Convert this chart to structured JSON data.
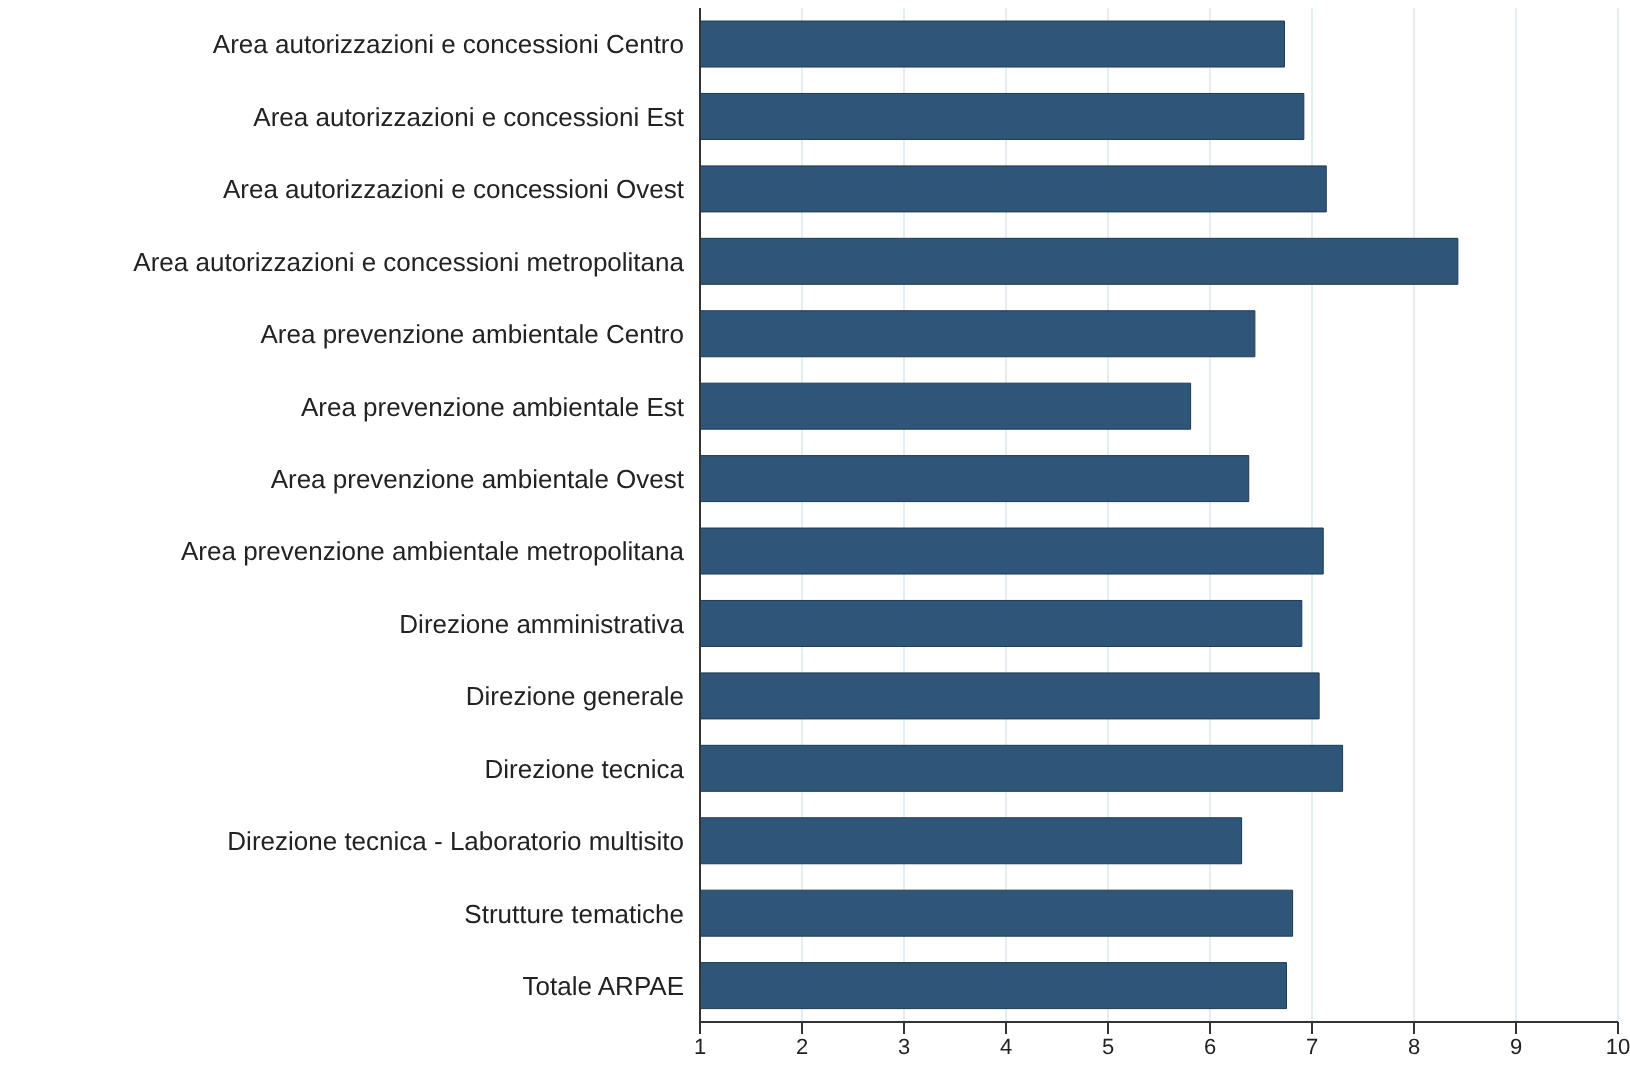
{
  "chart_data": {
    "type": "bar",
    "orientation": "horizontal",
    "categories": [
      "Area autorizzazioni e concessioni Centro",
      "Area autorizzazioni e concessioni Est",
      "Area autorizzazioni e concessioni Ovest",
      "Area autorizzazioni e concessioni metropolitana",
      "Area prevenzione ambientale Centro",
      "Area prevenzione ambientale Est",
      "Area prevenzione ambientale Ovest",
      "Area prevenzione ambientale metropolitana",
      "Direzione amministrativa",
      "Direzione generale",
      "Direzione tecnica",
      "Direzione tecnica - Laboratorio multisito",
      "Strutture tematiche",
      "Totale ARPAE"
    ],
    "values": [
      6.73,
      6.92,
      7.14,
      8.43,
      6.44,
      5.81,
      6.38,
      7.11,
      6.9,
      7.07,
      7.3,
      6.31,
      6.81,
      6.75
    ],
    "color": "#2f5679",
    "xlim": [
      1,
      10
    ],
    "xticks": [
      1,
      2,
      3,
      4,
      5,
      6,
      7,
      8,
      9,
      10
    ],
    "grid": "x"
  }
}
